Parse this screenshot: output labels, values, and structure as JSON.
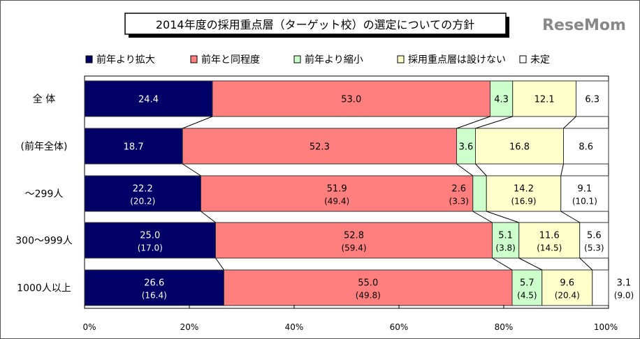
{
  "chart_data": {
    "type": "bar",
    "orientation": "horizontal-stacked-100",
    "title": "2014年度の採用重点層（ターゲット校）の選定についての方針",
    "legend_position": "top",
    "categories": [
      "全 体",
      "(前年全体)",
      "〜299人",
      "300〜999人",
      "1000人以上"
    ],
    "series": [
      {
        "name": "前年より拡大",
        "color": "#000066",
        "values": [
          24.4,
          18.7,
          22.2,
          25.0,
          26.6
        ],
        "previous": [
          null,
          null,
          20.2,
          17.0,
          16.4
        ]
      },
      {
        "name": "前年と同程度",
        "color": "#ff7f7f",
        "values": [
          53.0,
          52.3,
          51.9,
          52.8,
          55.0
        ],
        "previous": [
          null,
          null,
          49.4,
          59.4,
          49.8
        ]
      },
      {
        "name": "前年より縮小",
        "color": "#ccffcc",
        "values": [
          4.3,
          3.6,
          2.6,
          5.1,
          5.7
        ],
        "previous": [
          null,
          null,
          3.3,
          3.8,
          4.5
        ]
      },
      {
        "name": "採用重点層は設けない",
        "color": "#ffffcc",
        "values": [
          12.1,
          16.8,
          14.2,
          11.6,
          9.6
        ],
        "previous": [
          null,
          null,
          16.9,
          14.5,
          20.4
        ]
      },
      {
        "name": "未定",
        "color": "#ffffff",
        "values": [
          6.3,
          8.6,
          9.1,
          5.6,
          3.1
        ],
        "previous": [
          null,
          null,
          10.1,
          5.3,
          9.0
        ]
      }
    ],
    "xticks": [
      "0%",
      "20%",
      "40%",
      "60%",
      "80%",
      "100%"
    ],
    "xlim": [
      0,
      100
    ],
    "grid": false
  },
  "watermark": "ReseMom"
}
